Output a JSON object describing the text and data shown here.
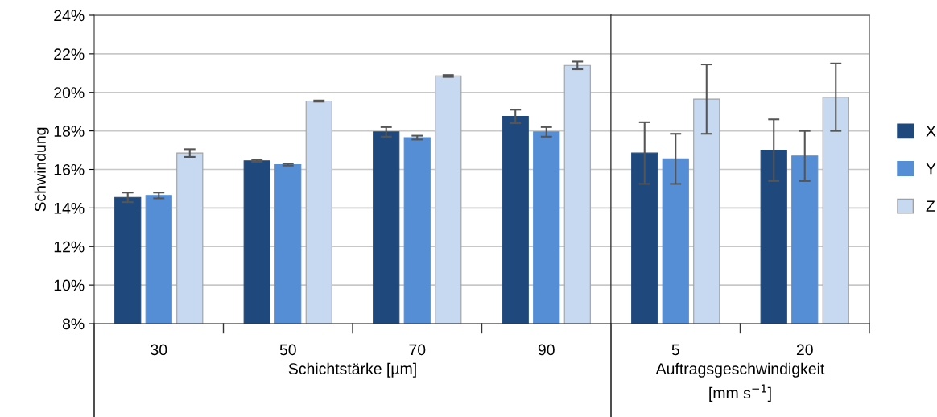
{
  "chart_data": [
    {
      "type": "bar",
      "ylabel": "Schwindung",
      "xlabel": "Schichtstärke [µm]",
      "categories": [
        "30",
        "50",
        "70",
        "90"
      ],
      "series": [
        {
          "name": "X",
          "color": "#1f497d",
          "values": [
            14.55,
            16.45,
            17.95,
            18.75
          ],
          "errors": [
            0.25,
            0.05,
            0.25,
            0.35
          ]
        },
        {
          "name": "Y",
          "color": "#558ed5",
          "values": [
            14.65,
            16.25,
            17.65,
            17.95
          ],
          "errors": [
            0.15,
            0.05,
            0.1,
            0.25
          ]
        },
        {
          "name": "Z",
          "color": "#c6d9f1",
          "values": [
            16.85,
            19.55,
            20.85,
            21.4
          ],
          "errors": [
            0.2,
            0.03,
            0.05,
            0.2
          ]
        }
      ],
      "ylim": [
        8,
        24
      ],
      "yticks": [
        {
          "value": 8,
          "label": "8%"
        },
        {
          "value": 10,
          "label": "10%"
        },
        {
          "value": 12,
          "label": "12%"
        },
        {
          "value": 14,
          "label": "14%"
        },
        {
          "value": 16,
          "label": "16%"
        },
        {
          "value": 18,
          "label": "18%"
        },
        {
          "value": 20,
          "label": "20%"
        },
        {
          "value": 22,
          "label": "22%"
        },
        {
          "value": 24,
          "label": "24%"
        }
      ],
      "grid": "y",
      "legend": "right"
    },
    {
      "type": "bar",
      "xlabel": "Auftragsgeschwindigkeit\n[mm s$^{−1}$]",
      "categories": [
        "5",
        "20"
      ],
      "series": [
        {
          "color": "#1f497d",
          "values": [
            16.85,
            17.0
          ],
          "errors": [
            1.6,
            1.6
          ]
        },
        {
          "color": "#558ed5",
          "values": [
            16.55,
            16.7
          ],
          "errors": [
            1.3,
            1.3
          ]
        },
        {
          "color": "#c6d9f1",
          "values": [
            19.65,
            19.75
          ],
          "errors": [
            1.8,
            1.75
          ]
        }
      ],
      "ylim": [
        8,
        24
      ],
      "yticks": [
        8,
        10,
        12,
        14,
        16,
        18,
        20,
        22,
        24
      ],
      "grid": "y",
      "tick_labels": "x"
    }
  ]
}
